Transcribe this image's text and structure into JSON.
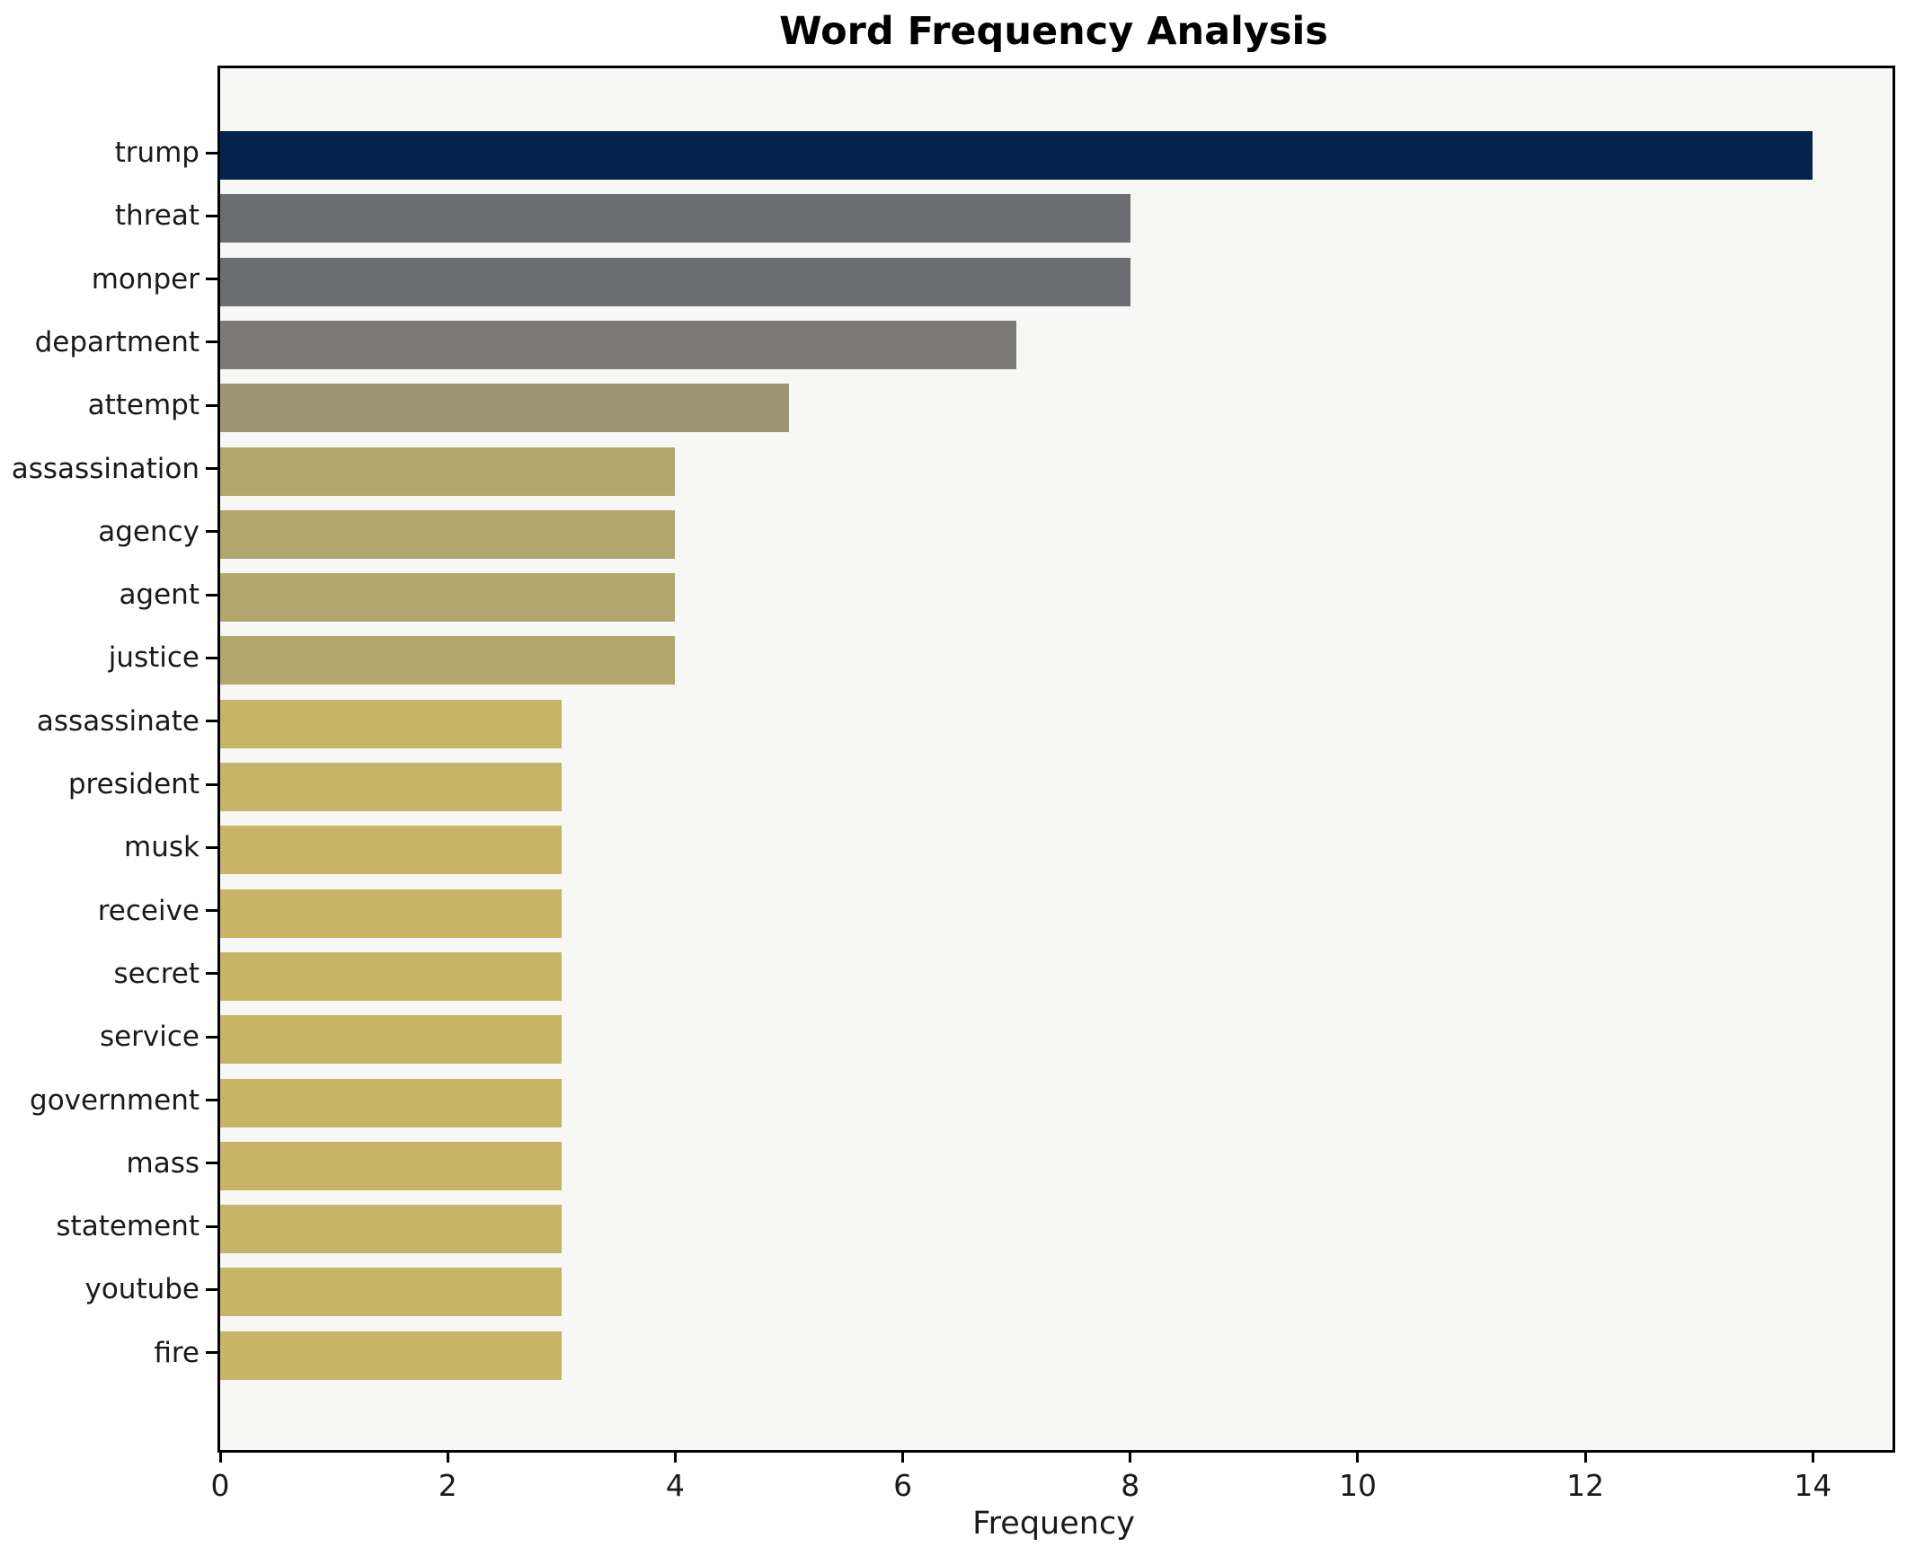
{
  "title": "Word Frequency Analysis",
  "chart_data": {
    "type": "bar",
    "orientation": "horizontal",
    "title": "Word Frequency Analysis",
    "xlabel": "Frequency",
    "ylabel": "",
    "categories": [
      "trump",
      "threat",
      "monper",
      "department",
      "attempt",
      "assassination",
      "agency",
      "agent",
      "justice",
      "assassinate",
      "president",
      "musk",
      "receive",
      "secret",
      "service",
      "government",
      "mass",
      "statement",
      "youtube",
      "fire"
    ],
    "values": [
      14,
      8,
      8,
      7,
      5,
      4,
      4,
      4,
      4,
      3,
      3,
      3,
      3,
      3,
      3,
      3,
      3,
      3,
      3,
      3
    ],
    "bar_colors": [
      "#04234e",
      "#6b6d71",
      "#6b6d71",
      "#7b7a76",
      "#9d9671",
      "#b1a66c",
      "#b1a66c",
      "#b1a66c",
      "#b1a66c",
      "#c7b467",
      "#c7b467",
      "#c7b467",
      "#c7b467",
      "#c7b467",
      "#c7b467",
      "#c7b467",
      "#c7b467",
      "#c7b467",
      "#c7b467",
      "#c7b467"
    ],
    "x_ticks": [
      0,
      2,
      4,
      6,
      8,
      10,
      12,
      14
    ],
    "xlim": [
      0,
      14.7
    ],
    "grid": false,
    "legend_position": "none",
    "plot_background": "#f7f7f5",
    "figure_background": "#ffffff",
    "axis_color": "#000000"
  }
}
